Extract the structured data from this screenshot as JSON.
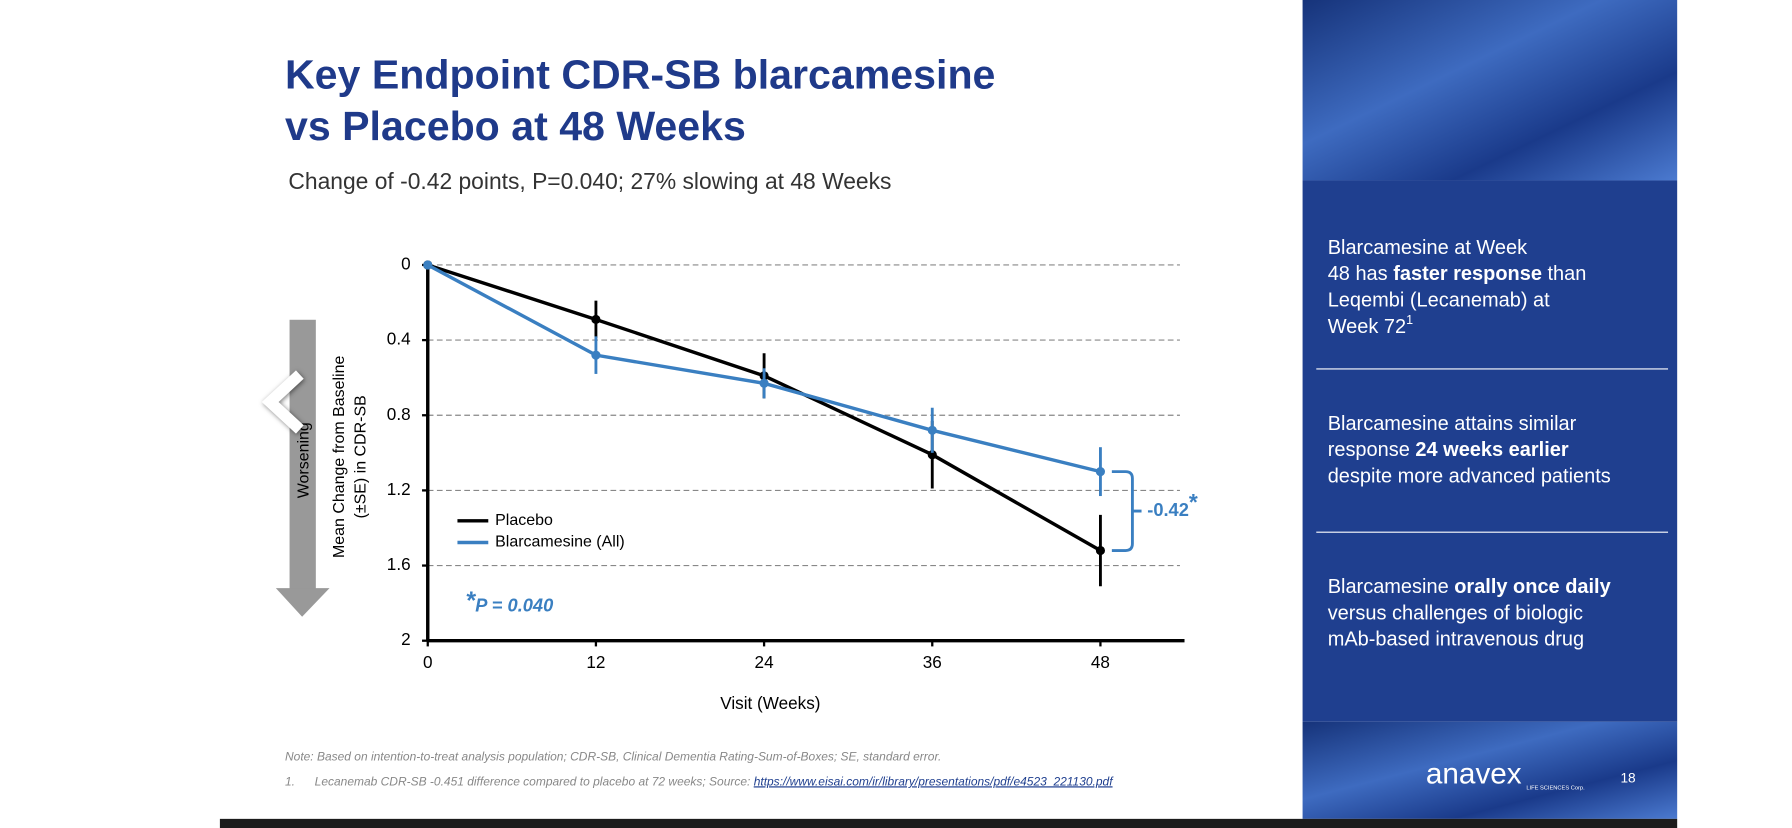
{
  "chart_data": {
    "type": "line",
    "title": [
      "Key Endpoint CDR-SB blarcamesine",
      "vs Placebo at 48 Weeks"
    ],
    "subtitle": "Change of -0.42 points, P=0.040; 27% slowing at 48 Weeks",
    "x_label": "Visit (Weeks)",
    "y_label": [
      "Mean Change from Baseline",
      "(±SE) in CDR-SB"
    ],
    "y_direction_label": "Worsening",
    "x": [
      0,
      12,
      24,
      36,
      48
    ],
    "series": [
      {
        "name": "Placebo",
        "color": "#000000",
        "values": [
          0,
          0.29,
          0.59,
          1.01,
          1.52
        ],
        "errors": [
          0,
          0.1,
          0.12,
          0.18,
          0.19
        ]
      },
      {
        "name": "Blarcamesine (All)",
        "color": "#3a7fc1",
        "values": [
          0,
          0.48,
          0.63,
          0.88,
          1.1
        ],
        "errors": [
          0,
          0.1,
          0.08,
          0.12,
          0.13
        ]
      }
    ],
    "xlim": [
      0,
      54
    ],
    "xticks": [
      0,
      12,
      24,
      36,
      48
    ],
    "ylim": [
      0,
      2
    ],
    "yticks": [
      0,
      0.4,
      0.8,
      1.2,
      1.6,
      2
    ],
    "y_inverted": true,
    "grid": true,
    "annotations": {
      "difference": "-0.42",
      "star": "*",
      "p_value": "P = 0.040"
    }
  },
  "panel": {
    "items": [
      [
        [
          {
            "text": "Blarcamesine at Week"
          }
        ],
        [
          {
            "text": "48 has "
          },
          {
            "text": "faster response",
            "bold": true
          },
          {
            "text": " than"
          }
        ],
        [
          {
            "text": "Leqembi (Lecanemab) at"
          }
        ],
        [
          {
            "text": "Week 72"
          },
          {
            "text": "1",
            "sup": true
          }
        ]
      ],
      [
        [
          {
            "text": "Blarcamesine attains similar"
          }
        ],
        [
          {
            "text": "response "
          },
          {
            "text": "24 weeks earlier",
            "bold": true
          }
        ],
        [
          {
            "text": "despite more advanced patients"
          }
        ]
      ],
      [
        [
          {
            "text": "Blarcamesine "
          },
          {
            "text": "orally once daily",
            "bold": true
          }
        ],
        [
          {
            "text": "versus challenges of biologic"
          }
        ],
        [
          {
            "text": "mAb-based intravenous drug"
          }
        ]
      ]
    ]
  },
  "footer": {
    "note": "Note: Based on intention-to-treat analysis population; CDR-SB, Clinical Dementia Rating-Sum-of-Boxes; SE, standard error.",
    "ref_number": "1.",
    "ref_text": "Lecanemab CDR-SB -0.451 difference compared to placebo at 72 weeks; Source: ",
    "ref_link": "https://www.eisai.com/ir/library/presentations/pdf/e4523_221130.pdf",
    "logo": "anavex",
    "logo_sub": "LIFE SCIENCES Corp.",
    "page_number": "18"
  }
}
